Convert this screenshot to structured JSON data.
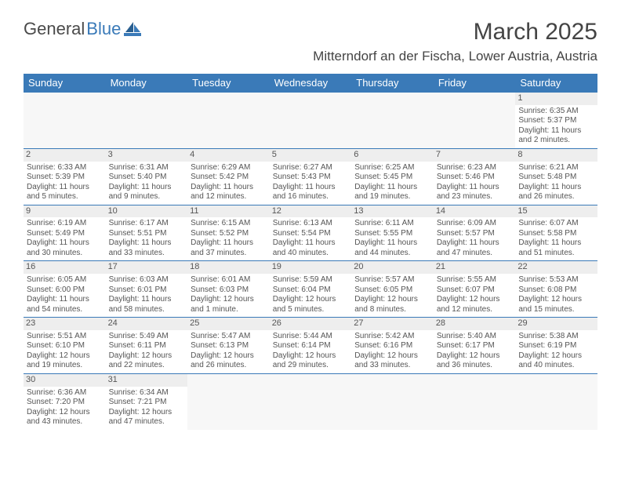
{
  "brand": {
    "part1": "General",
    "part2": "Blue"
  },
  "title": "March 2025",
  "location": "Mitterndorf an der Fischa, Lower Austria, Austria",
  "colors": {
    "header_bg": "#3a7ab8",
    "header_text": "#ffffff",
    "cell_border": "#3a7ab8",
    "daynum_bg": "#eeeeee",
    "text": "#555555",
    "brand_gray": "#4a4a4a",
    "brand_blue": "#3a7ab8"
  },
  "weekdays": [
    "Sunday",
    "Monday",
    "Tuesday",
    "Wednesday",
    "Thursday",
    "Friday",
    "Saturday"
  ],
  "weeks": [
    [
      null,
      null,
      null,
      null,
      null,
      null,
      {
        "n": "1",
        "sr": "Sunrise: 6:35 AM",
        "ss": "Sunset: 5:37 PM",
        "dl": "Daylight: 11 hours and 2 minutes."
      }
    ],
    [
      {
        "n": "2",
        "sr": "Sunrise: 6:33 AM",
        "ss": "Sunset: 5:39 PM",
        "dl": "Daylight: 11 hours and 5 minutes."
      },
      {
        "n": "3",
        "sr": "Sunrise: 6:31 AM",
        "ss": "Sunset: 5:40 PM",
        "dl": "Daylight: 11 hours and 9 minutes."
      },
      {
        "n": "4",
        "sr": "Sunrise: 6:29 AM",
        "ss": "Sunset: 5:42 PM",
        "dl": "Daylight: 11 hours and 12 minutes."
      },
      {
        "n": "5",
        "sr": "Sunrise: 6:27 AM",
        "ss": "Sunset: 5:43 PM",
        "dl": "Daylight: 11 hours and 16 minutes."
      },
      {
        "n": "6",
        "sr": "Sunrise: 6:25 AM",
        "ss": "Sunset: 5:45 PM",
        "dl": "Daylight: 11 hours and 19 minutes."
      },
      {
        "n": "7",
        "sr": "Sunrise: 6:23 AM",
        "ss": "Sunset: 5:46 PM",
        "dl": "Daylight: 11 hours and 23 minutes."
      },
      {
        "n": "8",
        "sr": "Sunrise: 6:21 AM",
        "ss": "Sunset: 5:48 PM",
        "dl": "Daylight: 11 hours and 26 minutes."
      }
    ],
    [
      {
        "n": "9",
        "sr": "Sunrise: 6:19 AM",
        "ss": "Sunset: 5:49 PM",
        "dl": "Daylight: 11 hours and 30 minutes."
      },
      {
        "n": "10",
        "sr": "Sunrise: 6:17 AM",
        "ss": "Sunset: 5:51 PM",
        "dl": "Daylight: 11 hours and 33 minutes."
      },
      {
        "n": "11",
        "sr": "Sunrise: 6:15 AM",
        "ss": "Sunset: 5:52 PM",
        "dl": "Daylight: 11 hours and 37 minutes."
      },
      {
        "n": "12",
        "sr": "Sunrise: 6:13 AM",
        "ss": "Sunset: 5:54 PM",
        "dl": "Daylight: 11 hours and 40 minutes."
      },
      {
        "n": "13",
        "sr": "Sunrise: 6:11 AM",
        "ss": "Sunset: 5:55 PM",
        "dl": "Daylight: 11 hours and 44 minutes."
      },
      {
        "n": "14",
        "sr": "Sunrise: 6:09 AM",
        "ss": "Sunset: 5:57 PM",
        "dl": "Daylight: 11 hours and 47 minutes."
      },
      {
        "n": "15",
        "sr": "Sunrise: 6:07 AM",
        "ss": "Sunset: 5:58 PM",
        "dl": "Daylight: 11 hours and 51 minutes."
      }
    ],
    [
      {
        "n": "16",
        "sr": "Sunrise: 6:05 AM",
        "ss": "Sunset: 6:00 PM",
        "dl": "Daylight: 11 hours and 54 minutes."
      },
      {
        "n": "17",
        "sr": "Sunrise: 6:03 AM",
        "ss": "Sunset: 6:01 PM",
        "dl": "Daylight: 11 hours and 58 minutes."
      },
      {
        "n": "18",
        "sr": "Sunrise: 6:01 AM",
        "ss": "Sunset: 6:03 PM",
        "dl": "Daylight: 12 hours and 1 minute."
      },
      {
        "n": "19",
        "sr": "Sunrise: 5:59 AM",
        "ss": "Sunset: 6:04 PM",
        "dl": "Daylight: 12 hours and 5 minutes."
      },
      {
        "n": "20",
        "sr": "Sunrise: 5:57 AM",
        "ss": "Sunset: 6:05 PM",
        "dl": "Daylight: 12 hours and 8 minutes."
      },
      {
        "n": "21",
        "sr": "Sunrise: 5:55 AM",
        "ss": "Sunset: 6:07 PM",
        "dl": "Daylight: 12 hours and 12 minutes."
      },
      {
        "n": "22",
        "sr": "Sunrise: 5:53 AM",
        "ss": "Sunset: 6:08 PM",
        "dl": "Daylight: 12 hours and 15 minutes."
      }
    ],
    [
      {
        "n": "23",
        "sr": "Sunrise: 5:51 AM",
        "ss": "Sunset: 6:10 PM",
        "dl": "Daylight: 12 hours and 19 minutes."
      },
      {
        "n": "24",
        "sr": "Sunrise: 5:49 AM",
        "ss": "Sunset: 6:11 PM",
        "dl": "Daylight: 12 hours and 22 minutes."
      },
      {
        "n": "25",
        "sr": "Sunrise: 5:47 AM",
        "ss": "Sunset: 6:13 PM",
        "dl": "Daylight: 12 hours and 26 minutes."
      },
      {
        "n": "26",
        "sr": "Sunrise: 5:44 AM",
        "ss": "Sunset: 6:14 PM",
        "dl": "Daylight: 12 hours and 29 minutes."
      },
      {
        "n": "27",
        "sr": "Sunrise: 5:42 AM",
        "ss": "Sunset: 6:16 PM",
        "dl": "Daylight: 12 hours and 33 minutes."
      },
      {
        "n": "28",
        "sr": "Sunrise: 5:40 AM",
        "ss": "Sunset: 6:17 PM",
        "dl": "Daylight: 12 hours and 36 minutes."
      },
      {
        "n": "29",
        "sr": "Sunrise: 5:38 AM",
        "ss": "Sunset: 6:19 PM",
        "dl": "Daylight: 12 hours and 40 minutes."
      }
    ],
    [
      {
        "n": "30",
        "sr": "Sunrise: 6:36 AM",
        "ss": "Sunset: 7:20 PM",
        "dl": "Daylight: 12 hours and 43 minutes."
      },
      {
        "n": "31",
        "sr": "Sunrise: 6:34 AM",
        "ss": "Sunset: 7:21 PM",
        "dl": "Daylight: 12 hours and 47 minutes."
      },
      null,
      null,
      null,
      null,
      null
    ]
  ]
}
